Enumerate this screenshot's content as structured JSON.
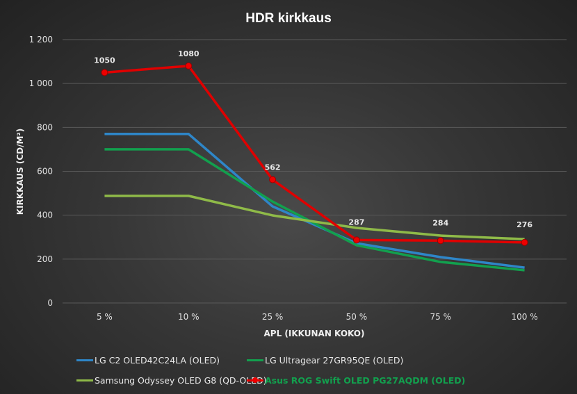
{
  "chart_data": {
    "type": "line",
    "title": "HDR kirkkaus",
    "xlabel": "APL (IKKUNAN KOKO)",
    "ylabel": "KIRKKAUS (CD/M²)",
    "categories": [
      "5 %",
      "10 %",
      "25 %",
      "50 %",
      "75 %",
      "100 %"
    ],
    "ylim": [
      0,
      1200
    ],
    "yticks": [
      0,
      200,
      400,
      600,
      800,
      1000,
      1200
    ],
    "ytick_labels": [
      "0",
      "200",
      "400",
      "600",
      "800",
      "1 000",
      "1 200"
    ],
    "grid": true,
    "legend_position": "bottom",
    "series": [
      {
        "name": "LG C2 OLED42C24LA (OLED)",
        "color": "#2e86c8",
        "values": [
          770,
          770,
          440,
          272,
          209,
          161
        ]
      },
      {
        "name": "LG Ultragear 27GR95QE (OLED)",
        "color": "#12a04e",
        "values": [
          700,
          700,
          462,
          263,
          187,
          149
        ]
      },
      {
        "name": "Samsung Odyssey OLED G8 (QD-OLED)",
        "color": "#8fba48",
        "values": [
          488,
          488,
          399,
          342,
          307,
          291
        ]
      },
      {
        "name": "Asus ROG Swift OLED PG27AQDM (OLED)",
        "color": "#e00000",
        "values": [
          1050,
          1080,
          562,
          287,
          284,
          276
        ],
        "labels": [
          "1050",
          "1080",
          "562",
          "287",
          "284",
          "276"
        ],
        "markers": true,
        "legend_text_color": "#12a04e"
      }
    ]
  }
}
